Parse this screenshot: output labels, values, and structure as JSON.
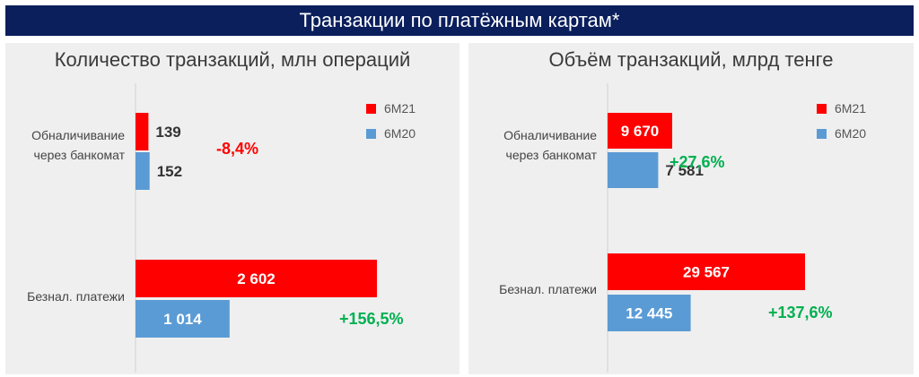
{
  "header": {
    "title": "Транзакции по платёжным картам*"
  },
  "colors": {
    "s6m21": "#ff0000",
    "s6m20": "#5b9bd5",
    "positive": "#00b050",
    "negative": "#ff0000",
    "header_bg": "#0a1f5c"
  },
  "chart_data": [
    {
      "type": "bar",
      "orientation": "horizontal",
      "title": "Количество транзакций, млн операций",
      "categories": [
        "Обналичивание через банкомат",
        "Безнал. платежи"
      ],
      "series": [
        {
          "name": "6M21",
          "values": [
            139,
            2602
          ],
          "labels": [
            "139",
            "2 602"
          ]
        },
        {
          "name": "6M20",
          "values": [
            152,
            1014
          ],
          "labels": [
            "152",
            "1 014"
          ]
        }
      ],
      "changes": [
        "-8,4%",
        "+156,5%"
      ],
      "legend": "top-right"
    },
    {
      "type": "bar",
      "orientation": "horizontal",
      "title": "Объём транзакций, млрд тенге",
      "categories": [
        "Обналичивание через банкомат",
        "Безнал. платежи"
      ],
      "series": [
        {
          "name": "6M21",
          "values": [
            9670,
            29567
          ],
          "labels": [
            "9 670",
            "29 567"
          ]
        },
        {
          "name": "6M20",
          "values": [
            7581,
            12445
          ],
          "labels": [
            "7 581",
            "12 445"
          ]
        }
      ],
      "changes": [
        "+27,6%",
        "+137,6%"
      ],
      "legend": "top-right"
    }
  ]
}
